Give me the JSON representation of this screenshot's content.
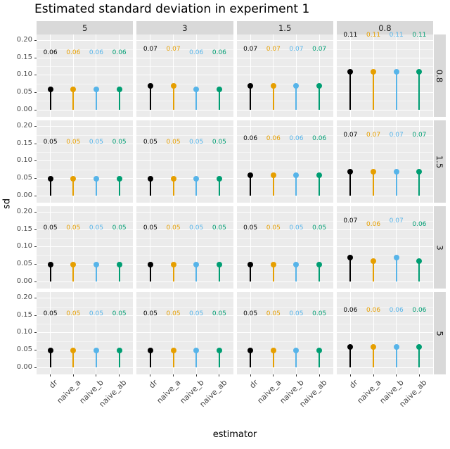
{
  "title": "Estimated standard deviation in experiment 1",
  "chart_data": {
    "type": "lollipop",
    "title": "Estimated standard deviation in experiment 1",
    "xlabel": "estimator",
    "ylabel": "sd",
    "x_categories": [
      "dr",
      "naive_a",
      "naive_b",
      "naive_ab"
    ],
    "y_ticks": [
      0.0,
      0.05,
      0.1,
      0.15,
      0.2
    ],
    "ylim": [
      0,
      0.22
    ],
    "grid": true,
    "legend": "none",
    "label_nudge_y": 0.105,
    "col_facets": [
      "5",
      "3",
      "1.5",
      "0.8"
    ],
    "row_facets": [
      "0.8",
      "1.5",
      "3",
      "5"
    ],
    "series_colors": {
      "dr": "#000000",
      "naive_a": "#E69F00",
      "naive_b": "#56B4E9",
      "naive_ab": "#009E73"
    },
    "values": [
      [
        [
          0.06,
          0.06,
          0.06,
          0.06
        ],
        [
          0.07,
          0.07,
          0.06,
          0.06
        ],
        [
          0.07,
          0.07,
          0.07,
          0.07
        ],
        [
          0.11,
          0.11,
          0.11,
          0.11
        ]
      ],
      [
        [
          0.05,
          0.05,
          0.05,
          0.05
        ],
        [
          0.05,
          0.05,
          0.05,
          0.05
        ],
        [
          0.06,
          0.06,
          0.06,
          0.06
        ],
        [
          0.07,
          0.07,
          0.07,
          0.07
        ]
      ],
      [
        [
          0.05,
          0.05,
          0.05,
          0.05
        ],
        [
          0.05,
          0.05,
          0.05,
          0.05
        ],
        [
          0.05,
          0.05,
          0.05,
          0.05
        ],
        [
          0.07,
          0.06,
          0.07,
          0.06
        ]
      ],
      [
        [
          0.05,
          0.05,
          0.05,
          0.05
        ],
        [
          0.05,
          0.05,
          0.05,
          0.05
        ],
        [
          0.05,
          0.05,
          0.05,
          0.05
        ],
        [
          0.06,
          0.06,
          0.06,
          0.06
        ]
      ]
    ]
  }
}
